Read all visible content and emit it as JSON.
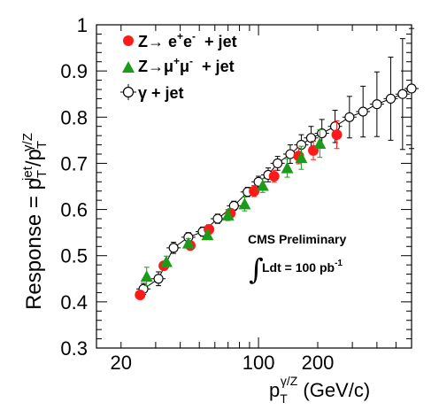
{
  "chart_data": {
    "type": "scatter",
    "x_scale": "log",
    "xlim": [
      15,
      600
    ],
    "ylim": [
      0.3,
      1.0
    ],
    "xlabel": {
      "main": "p",
      "sub": "T",
      "sup": "γ/Z",
      "unit": " (GeV/c)"
    },
    "ylabel": {
      "prefix": "Response = p",
      "sup1": "jet",
      "sub1": "T",
      "mid": "/p",
      "sup2": "γ/Z",
      "sub2": "T"
    },
    "x_tick_labels": [
      {
        "value": 20,
        "label": "20"
      },
      {
        "value": 100,
        "label": "100"
      },
      {
        "value": 200,
        "label": "200"
      }
    ],
    "y_tick_labels": [
      {
        "value": 0.3,
        "label": "0.3"
      },
      {
        "value": 0.4,
        "label": "0.4"
      },
      {
        "value": 0.5,
        "label": "0.5"
      },
      {
        "value": 0.6,
        "label": "0.6"
      },
      {
        "value": 0.7,
        "label": "0.7"
      },
      {
        "value": 0.8,
        "label": "0.8"
      },
      {
        "value": 0.9,
        "label": "0.9"
      },
      {
        "value": 1.0,
        "label": "1"
      }
    ],
    "legend_position": "top-left",
    "series": [
      {
        "name": "Z→ e+e- + jet",
        "legend": {
          "pre": "Z→ e",
          "s1": "+",
          "mid": "e",
          "s2": "-",
          "post": "  + jet"
        },
        "marker": "circle",
        "color": "#ff1a1a",
        "points": [
          {
            "x": 25,
            "y": 0.415,
            "err": 0.008
          },
          {
            "x": 33,
            "y": 0.478,
            "err": 0.008
          },
          {
            "x": 45,
            "y": 0.522,
            "err": 0.008
          },
          {
            "x": 56,
            "y": 0.557,
            "err": 0.01
          },
          {
            "x": 72,
            "y": 0.592,
            "err": 0.01
          },
          {
            "x": 95,
            "y": 0.64,
            "err": 0.012
          },
          {
            "x": 120,
            "y": 0.672,
            "err": 0.013
          },
          {
            "x": 160,
            "y": 0.716,
            "err": 0.017
          },
          {
            "x": 190,
            "y": 0.728,
            "err": 0.02
          },
          {
            "x": 250,
            "y": 0.762,
            "err": 0.03
          }
        ]
      },
      {
        "name": "Z→μ+μ- + jet",
        "legend": {
          "pre": "Z→μ",
          "s1": "+",
          "mid": "μ",
          "s2": "-",
          "post": "  + jet"
        },
        "marker": "triangle",
        "color": "#1a9c1a",
        "points": [
          {
            "x": 27,
            "y": 0.455,
            "err": 0.02
          },
          {
            "x": 34,
            "y": 0.487,
            "err": 0.012
          },
          {
            "x": 44,
            "y": 0.527,
            "err": 0.01
          },
          {
            "x": 55,
            "y": 0.545,
            "err": 0.01
          },
          {
            "x": 70,
            "y": 0.588,
            "err": 0.012
          },
          {
            "x": 85,
            "y": 0.612,
            "err": 0.015
          },
          {
            "x": 105,
            "y": 0.652,
            "err": 0.015
          },
          {
            "x": 140,
            "y": 0.69,
            "err": 0.02
          },
          {
            "x": 165,
            "y": 0.712,
            "err": 0.025
          },
          {
            "x": 205,
            "y": 0.743,
            "err": 0.03
          }
        ]
      },
      {
        "name": "γ + jet",
        "legend": {
          "pre": "γ + jet",
          "s1": "",
          "mid": "",
          "s2": "",
          "post": ""
        },
        "marker": "open-circle",
        "color": "#000000",
        "points": [
          {
            "x": 26,
            "y": 0.428,
            "err": 0.012
          },
          {
            "x": 31,
            "y": 0.45,
            "err": 0.015
          },
          {
            "x": 37,
            "y": 0.517,
            "err": 0.012
          },
          {
            "x": 44,
            "y": 0.54,
            "err": 0.01
          },
          {
            "x": 52,
            "y": 0.552,
            "err": 0.01
          },
          {
            "x": 62,
            "y": 0.58,
            "err": 0.01
          },
          {
            "x": 75,
            "y": 0.608,
            "err": 0.01
          },
          {
            "x": 88,
            "y": 0.638,
            "err": 0.01
          },
          {
            "x": 100,
            "y": 0.66,
            "err": 0.012
          },
          {
            "x": 112,
            "y": 0.675,
            "err": 0.015
          },
          {
            "x": 125,
            "y": 0.7,
            "err": 0.015
          },
          {
            "x": 145,
            "y": 0.72,
            "err": 0.02
          },
          {
            "x": 165,
            "y": 0.74,
            "err": 0.022
          },
          {
            "x": 185,
            "y": 0.755,
            "err": 0.025
          },
          {
            "x": 210,
            "y": 0.765,
            "err": 0.03
          },
          {
            "x": 245,
            "y": 0.78,
            "err": 0.035
          },
          {
            "x": 290,
            "y": 0.8,
            "err": 0.045
          },
          {
            "x": 340,
            "y": 0.812,
            "err": 0.055
          },
          {
            "x": 400,
            "y": 0.828,
            "err": 0.07
          },
          {
            "x": 470,
            "y": 0.84,
            "err": 0.09
          },
          {
            "x": 540,
            "y": 0.85,
            "err": 0.12
          },
          {
            "x": 600,
            "y": 0.862,
            "err": 0.13
          }
        ]
      }
    ],
    "annotations": {
      "title": "CMS Preliminary",
      "lumi_text": "Ldt = 100 pb",
      "lumi_sup": "-1",
      "integral": "∫"
    }
  }
}
